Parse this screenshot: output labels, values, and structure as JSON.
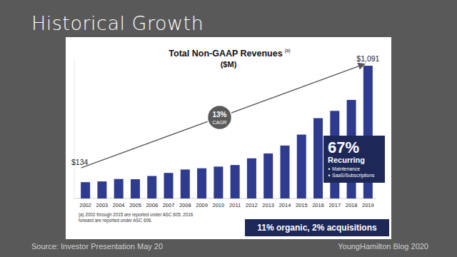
{
  "page": {
    "heading": "Historical Growth",
    "source": "Source: Investor Presentation May 20",
    "credit": "YoungHamilton Blog 2020"
  },
  "chart_data": {
    "type": "bar",
    "title": "Total Non-GAAP Revenues",
    "title_note": "(a)",
    "subtitle": "($M)",
    "categories": [
      "2002",
      "2003",
      "2004",
      "2005",
      "2006",
      "2007",
      "2008",
      "2009",
      "2010",
      "2011",
      "2012",
      "2013",
      "2014",
      "2015",
      "2016",
      "2017",
      "2018",
      "2019"
    ],
    "values": [
      134,
      140,
      160,
      158,
      185,
      210,
      238,
      248,
      262,
      275,
      330,
      370,
      435,
      525,
      660,
      720,
      810,
      1091
    ],
    "value_labels": [
      "$134",
      null,
      null,
      null,
      null,
      null,
      null,
      null,
      null,
      null,
      null,
      null,
      null,
      null,
      null,
      null,
      null,
      "$1,091"
    ],
    "color": "#2e3b8e",
    "ylim": [
      0,
      1150
    ],
    "tick_labels": "x",
    "grid": false,
    "annotations": {
      "cagr": [
        "13%",
        "CAGR"
      ],
      "recurring": {
        "headline": "67%",
        "label": "Recurring",
        "items": [
          "Maintenance",
          "SaaS/Subscriptions"
        ]
      },
      "footnote": [
        "(a) 2002 through 2015 are reported under ASC 605. 2016",
        "forward are reported under ASC 606."
      ],
      "banner": "11% organic, 2% acquisitions"
    }
  }
}
